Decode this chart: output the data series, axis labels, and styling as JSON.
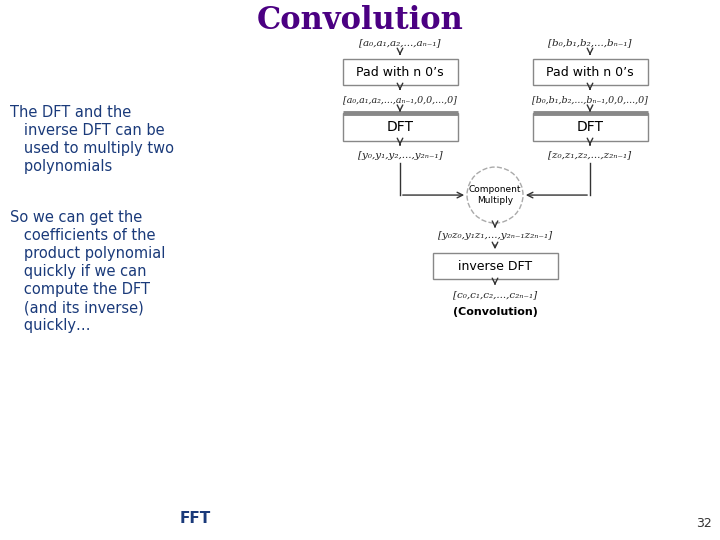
{
  "title": "Convolution",
  "title_color": "#4B0082",
  "title_fontsize": 22,
  "bg_color": "#ffffff",
  "left_text_color": "#1a3a7a",
  "left_text1_line1": "The DFT and the",
  "left_text1_line2": "   inverse DFT can be",
  "left_text1_line3": "   used to multiply two",
  "left_text1_line4": "   polynomials",
  "left_text2_line1": "So we can get the",
  "left_text2_line2": "   coefficients of the",
  "left_text2_line3": "   product polynomial",
  "left_text2_line4": "   quickly if we can",
  "left_text2_line5": "   compute the DFT",
  "left_text2_line6": "   (and its inverse)",
  "left_text2_line7": "   quickly…",
  "bottom_left_text": "FFT",
  "bottom_right_text": "32",
  "diagram": {
    "box_fill": "#ffffff",
    "box_edge_color": "#888888",
    "box_text_color": "#000000",
    "dft_box_top_color": "#999999",
    "arrow_color": "#333333",
    "label_color": "#222222",
    "circle_edge": "#aaaaaa",
    "circle_fill": "#ffffff",
    "label1_top": "[a₀,a₁,a₂,...,aₙ₋₁]",
    "label2_top": "[b₀,b₁,b₂,...,bₙ₋₁]",
    "box1_text": "Pad with n 0’s",
    "box2_text": "Pad with n 0’s",
    "label1_mid1": "[a₀,a₁,a₂,...,aₙ₋₁,0,0,...,0]",
    "label2_mid1": "[b₀,b₁,b₂,...,bₙ₋₁,0,0,...,0]",
    "box3_text": "DFT",
    "box4_text": "DFT",
    "label1_mid2": "[y₀,y₁,y₂,...,y₂ₙ₋₁]",
    "label2_mid2": "[z₀,z₁,z₂,...,z₂ₙ₋₁]",
    "circle_text": "Component\nMultiply",
    "label_product": "[y₀z₀,y₁z₁,...,y₂ₙ₋₁z₂ₙ₋₁]",
    "box5_text": "inverse DFT",
    "label_final": "[c₀,c₁,c₂,...,c₂ₙ₋₁]",
    "label_convolution": "(Convolution)"
  }
}
